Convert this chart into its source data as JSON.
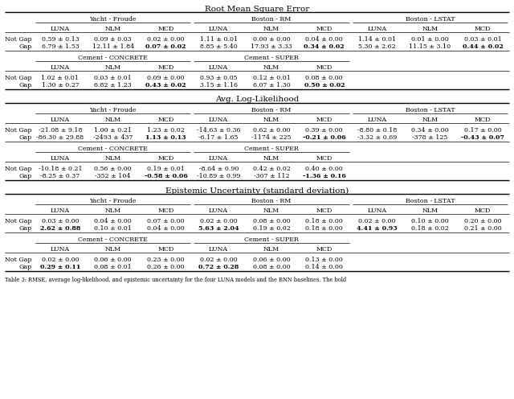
{
  "sections": [
    {
      "title": "Root Mean Square Error",
      "row1_datasets": [
        "Yacht - Froude",
        "Boston - RM",
        "Boston - LSTAT"
      ],
      "row1_cols": [
        "LUNA",
        "NLM",
        "MCD",
        "LUNA",
        "NLM",
        "MCD",
        "LUNA",
        "NLM",
        "MCD"
      ],
      "row1_data": [
        [
          "0.59 ± 0.13",
          "0.09 ± 0.03",
          "0.02 ± 0.00",
          "1.11 ± 0.01",
          "0.00 ± 0.00",
          "0.04 ± 0.00",
          "1.14 ± 0.01",
          "0.01 ± 0.00",
          "0.03 ± 0.01"
        ],
        [
          "6.79 ± 1.53",
          "12.11 ± 1.84",
          "bold:0.07 ± 0.02",
          "8.85 ± 5.40",
          "17.93 ± 3.33",
          "bold:0.34 ± 0.02",
          "5.30 ± 2.62",
          "11.15 ± 3.10",
          "bold:0.44 ± 0.02"
        ]
      ],
      "row2_datasets": [
        "Cement - CONCRETE",
        "Cement - SUPER"
      ],
      "row2_cols": [
        "LUNA",
        "NLM",
        "MCD",
        "LUNA",
        "NLM",
        "MCD"
      ],
      "row2_data": [
        [
          "1.02 ± 0.01",
          "0.03 ± 0.01",
          "0.09 ± 0.00",
          "0.93 ± 0.05",
          "0.12 ± 0.01",
          "0.08 ± 0.00"
        ],
        [
          "1.30 ± 0.27",
          "6.82 ± 1.23",
          "bold:0.43 ± 0.02",
          "3.15 ± 1.16",
          "6.07 ± 1.30",
          "bold:0.50 ± 0.02"
        ]
      ]
    },
    {
      "title": "Avg. Log-Likelihood",
      "row1_datasets": [
        "Yacht - Froude",
        "Boston - RM",
        "Boston - LSTAT"
      ],
      "row1_cols": [
        "LUNA",
        "NLM",
        "MCD",
        "LUNA",
        "NLM",
        "MCD",
        "LUNA",
        "NLM",
        "MCD"
      ],
      "row1_data": [
        [
          "-21.08 ± 9.18",
          "1.00 ± 0.21",
          "1.23 ± 0.02",
          "-14.63 ± 0.36",
          "0.62 ± 0.00",
          "0.39 ± 0.00",
          "-8.80 ± 0.18",
          "0.34 ± 0.00",
          "0.17 ± 0.00"
        ],
        [
          "-86.30 ± 29.88",
          "-2493 ± 437",
          "bold:1.13 ± 0.13",
          "-6.17 ± 1.65",
          "-1174 ± 225",
          "bold:-0.21 ± 0.06",
          "-3.32 ± 0.69",
          "-378 ± 125",
          "bold:-0.43 ± 0.07"
        ]
      ],
      "row2_datasets": [
        "Cement - CONCRETE",
        "Cement - SUPER"
      ],
      "row2_cols": [
        "LUNA",
        "NLM",
        "MCD",
        "LUNA",
        "NLM",
        "MCD"
      ],
      "row2_data": [
        [
          "-10.18 ± 0.21",
          "0.56 ± 0.00",
          "0.19 ± 0.01",
          "-8.64 ± 0.90",
          "0.42 ± 0.02",
          "0.40 ± 0.00"
        ],
        [
          "-8.25 ± 0.37",
          "-352 ± 104",
          "bold:-0.58 ± 0.06",
          "-10.89 ± 0.99",
          "-307 ± 112",
          "bold:-1.36 ± 0.16"
        ]
      ]
    },
    {
      "title": "Epistemic Uncertainty (standard deviation)",
      "row1_datasets": [
        "Yacht - Froude",
        "Boston - RM",
        "Boston - LSTAT"
      ],
      "row1_cols": [
        "LUNA",
        "NLM",
        "MCD",
        "LUNA",
        "NLM",
        "MCD",
        "LUNA",
        "NLM",
        "MCD"
      ],
      "row1_data": [
        [
          "0.03 ± 0.00",
          "0.04 ± 0.00",
          "0.07 ± 0.00",
          "0.02 ± 0.00",
          "0.08 ± 0.00",
          "0.18 ± 0.00",
          "0.02 ± 0.00",
          "0.10 ± 0.00",
          "0.20 ± 0.00"
        ],
        [
          "bold:2.62 ± 0.88",
          "0.10 ± 0.01",
          "0.04 ± 0.00",
          "bold:5.63 ± 2.04",
          "0.19 ± 0.02",
          "0.18 ± 0.00",
          "bold:4.41 ± 0.93",
          "0.18 ± 0.02",
          "0.21 ± 0.00"
        ]
      ],
      "row2_datasets": [
        "Cement - CONCRETE",
        "Cement - SUPER"
      ],
      "row2_cols": [
        "LUNA",
        "NLM",
        "MCD",
        "LUNA",
        "NLM",
        "MCD"
      ],
      "row2_data": [
        [
          "0.02 ± 0.00",
          "0.06 ± 0.00",
          "0.23 ± 0.00",
          "0.02 ± 0.00",
          "0.06 ± 0.00",
          "0.13 ± 0.00"
        ],
        [
          "bold:0.29 ± 0.11",
          "0.08 ± 0.01",
          "0.26 ± 0.00",
          "bold:0.72 ± 0.28",
          "0.08 ± 0.00",
          "0.14 ± 0.00"
        ]
      ]
    }
  ],
  "row_labels": [
    "Not Gap",
    "Gap"
  ],
  "caption": "Table 3: RMSE, average log-likelihood, and epistemic uncertainty for the four LUNA models and the BNN baselines. The bold",
  "bg_color": "#ffffff",
  "font_size": 6.0,
  "title_font_size": 7.5,
  "caption_font_size": 4.8
}
